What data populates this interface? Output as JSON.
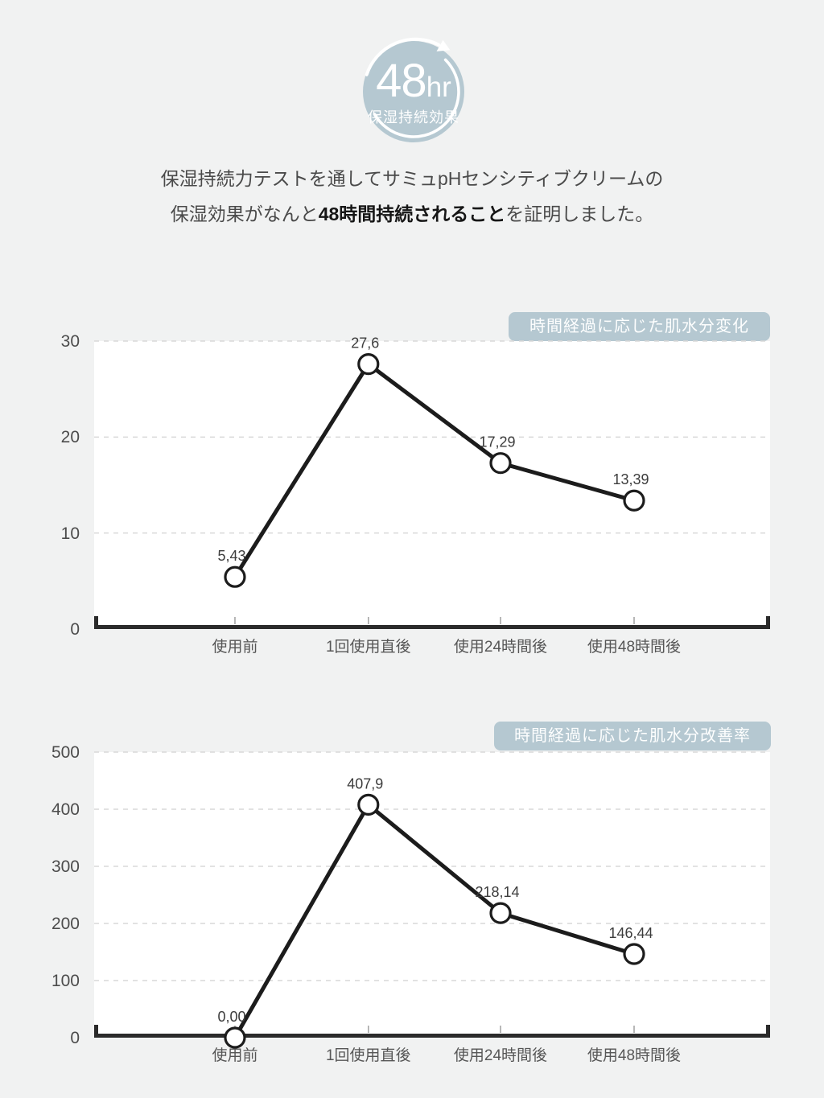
{
  "page": {
    "background": "#f1f2f2"
  },
  "badge": {
    "number": "48",
    "unit": "hr",
    "caption": "保湿持続効果"
  },
  "intro": {
    "line1": "保湿持続力テストを通してサミュpHセンシティブクリームの",
    "line2_pre": "保湿効果がなんと",
    "line2_bold": "48時間持続されること",
    "line2_post": "を証明しました。"
  },
  "colors": {
    "accent": "#b5c8d1",
    "line": "#1c1c1c",
    "marker_fill": "#ffffff",
    "grid": "#d8d8d8",
    "axis": "#2b2b2b",
    "tick": "#a0a0a0",
    "point_label": "#3c3c3c"
  },
  "chart_data": [
    {
      "type": "line",
      "title": "時間経過に応じた肌水分変化",
      "categories": [
        "使用前",
        "1回使用直後",
        "使用24時間後",
        "使用48時間後"
      ],
      "values": [
        5.43,
        27.6,
        17.29,
        13.39
      ],
      "point_labels": [
        "5,43",
        "27,6",
        "17,29",
        "13,39"
      ],
      "xlabel": "",
      "ylabel": "",
      "ylim": [
        0,
        30
      ],
      "yticks": [
        0,
        10,
        20,
        30
      ],
      "grid": "horizontal-dashed",
      "legend": "none",
      "marker": "open-circle"
    },
    {
      "type": "line",
      "title": "時間経過に応じた肌水分改善率",
      "categories": [
        "使用前",
        "1回使用直後",
        "使用24時間後",
        "使用48時間後"
      ],
      "values": [
        0.0,
        407.9,
        218.14,
        146.44
      ],
      "point_labels": [
        "0,00",
        "407,9",
        "218,14",
        "146,44"
      ],
      "xlabel": "",
      "ylabel": "",
      "ylim": [
        0,
        500
      ],
      "yticks": [
        0,
        100,
        200,
        300,
        400,
        500
      ],
      "grid": "horizontal-dashed",
      "legend": "none",
      "marker": "open-circle"
    }
  ]
}
